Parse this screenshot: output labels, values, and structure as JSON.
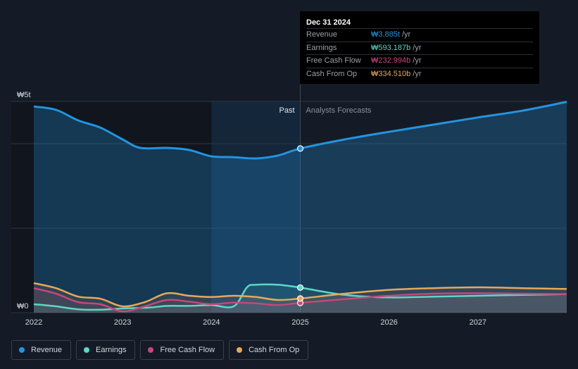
{
  "colors": {
    "revenue": "#2394df",
    "earnings": "#5ad8c6",
    "fcf": "#c9457c",
    "cfo": "#e8a85a",
    "background": "#151b26"
  },
  "tooltip": {
    "date": "Dec 31 2024",
    "rows": [
      {
        "label": "Revenue",
        "value": "₩3.885t",
        "unit": "/yr",
        "color": "#2394df"
      },
      {
        "label": "Earnings",
        "value": "₩593.187b",
        "unit": "/yr",
        "color": "#5ad8c6"
      },
      {
        "label": "Free Cash Flow",
        "value": "₩232.994b",
        "unit": "/yr",
        "color": "#c9457c"
      },
      {
        "label": "Cash From Op",
        "value": "₩334.510b",
        "unit": "/yr",
        "color": "#e8a85a"
      }
    ]
  },
  "legend": [
    {
      "label": "Revenue",
      "color": "#2394df"
    },
    {
      "label": "Earnings",
      "color": "#5ad8c6"
    },
    {
      "label": "Free Cash Flow",
      "color": "#c9457c"
    },
    {
      "label": "Cash From Op",
      "color": "#e8a85a"
    }
  ],
  "chart_data": {
    "type": "line",
    "title": "",
    "xlabel": "",
    "ylabel": "",
    "x_ticks": [
      "2022",
      "2023",
      "2024",
      "2025",
      "2026",
      "2027"
    ],
    "x_tick_values": [
      2022,
      2023,
      2024,
      2025,
      2026,
      2027
    ],
    "xlim": [
      2022.0,
      2028.0
    ],
    "ylim": [
      0,
      5
    ],
    "y_tick_labels": [
      {
        "value": 5,
        "label": "₩5t"
      },
      {
        "value": 0,
        "label": "₩0"
      }
    ],
    "gridlines_y": [
      0,
      2,
      4,
      5
    ],
    "past_label": "Past",
    "forecast_label": "Analysts Forecasts",
    "divider_x": 2025.0,
    "highlight_start": 2024.0,
    "series": [
      {
        "name": "Revenue",
        "key": "revenue",
        "fill": true,
        "points": [
          [
            2022.0,
            4.88
          ],
          [
            2022.25,
            4.8
          ],
          [
            2022.5,
            4.55
          ],
          [
            2022.75,
            4.38
          ],
          [
            2023.0,
            4.1
          ],
          [
            2023.2,
            3.9
          ],
          [
            2023.5,
            3.9
          ],
          [
            2023.75,
            3.85
          ],
          [
            2024.0,
            3.7
          ],
          [
            2024.25,
            3.68
          ],
          [
            2024.5,
            3.65
          ],
          [
            2024.75,
            3.72
          ],
          [
            2025.0,
            3.885
          ],
          [
            2025.5,
            4.1
          ],
          [
            2026.0,
            4.28
          ],
          [
            2026.5,
            4.45
          ],
          [
            2027.0,
            4.62
          ],
          [
            2027.5,
            4.78
          ],
          [
            2028.0,
            4.99
          ]
        ]
      },
      {
        "name": "Earnings",
        "key": "earnings",
        "fill": false,
        "points": [
          [
            2022.0,
            0.2
          ],
          [
            2022.25,
            0.15
          ],
          [
            2022.5,
            0.08
          ],
          [
            2022.75,
            0.07
          ],
          [
            2023.0,
            0.1
          ],
          [
            2023.3,
            0.12
          ],
          [
            2023.5,
            0.16
          ],
          [
            2023.75,
            0.16
          ],
          [
            2024.0,
            0.18
          ],
          [
            2024.25,
            0.15
          ],
          [
            2024.4,
            0.6
          ],
          [
            2024.5,
            0.66
          ],
          [
            2024.75,
            0.66
          ],
          [
            2025.0,
            0.593
          ],
          [
            2025.5,
            0.42
          ],
          [
            2026.0,
            0.36
          ],
          [
            2026.5,
            0.38
          ],
          [
            2027.0,
            0.4
          ],
          [
            2027.5,
            0.42
          ],
          [
            2028.0,
            0.44
          ]
        ]
      },
      {
        "name": "Free Cash Flow",
        "key": "fcf",
        "fill": false,
        "points": [
          [
            2022.0,
            0.58
          ],
          [
            2022.25,
            0.45
          ],
          [
            2022.5,
            0.25
          ],
          [
            2022.75,
            0.2
          ],
          [
            2023.0,
            0.03
          ],
          [
            2023.25,
            0.15
          ],
          [
            2023.5,
            0.3
          ],
          [
            2023.75,
            0.26
          ],
          [
            2024.0,
            0.2
          ],
          [
            2024.25,
            0.24
          ],
          [
            2024.5,
            0.22
          ],
          [
            2024.75,
            0.18
          ],
          [
            2025.0,
            0.233
          ],
          [
            2025.5,
            0.32
          ],
          [
            2026.0,
            0.4
          ],
          [
            2026.5,
            0.45
          ],
          [
            2027.0,
            0.46
          ],
          [
            2027.5,
            0.45
          ],
          [
            2028.0,
            0.44
          ]
        ]
      },
      {
        "name": "Cash From Op",
        "key": "cfo",
        "fill": false,
        "points": [
          [
            2022.0,
            0.7
          ],
          [
            2022.25,
            0.58
          ],
          [
            2022.5,
            0.38
          ],
          [
            2022.75,
            0.33
          ],
          [
            2023.0,
            0.15
          ],
          [
            2023.25,
            0.25
          ],
          [
            2023.5,
            0.46
          ],
          [
            2023.75,
            0.4
          ],
          [
            2024.0,
            0.37
          ],
          [
            2024.25,
            0.4
          ],
          [
            2024.5,
            0.37
          ],
          [
            2024.75,
            0.3
          ],
          [
            2025.0,
            0.335
          ],
          [
            2025.5,
            0.45
          ],
          [
            2026.0,
            0.54
          ],
          [
            2026.5,
            0.58
          ],
          [
            2027.0,
            0.6
          ],
          [
            2027.5,
            0.58
          ],
          [
            2028.0,
            0.56
          ]
        ]
      }
    ],
    "markers_at_x": 2025.0,
    "marker_values": {
      "revenue": 3.885,
      "earnings": 0.593,
      "fcf": 0.233,
      "cfo": 0.335
    }
  }
}
